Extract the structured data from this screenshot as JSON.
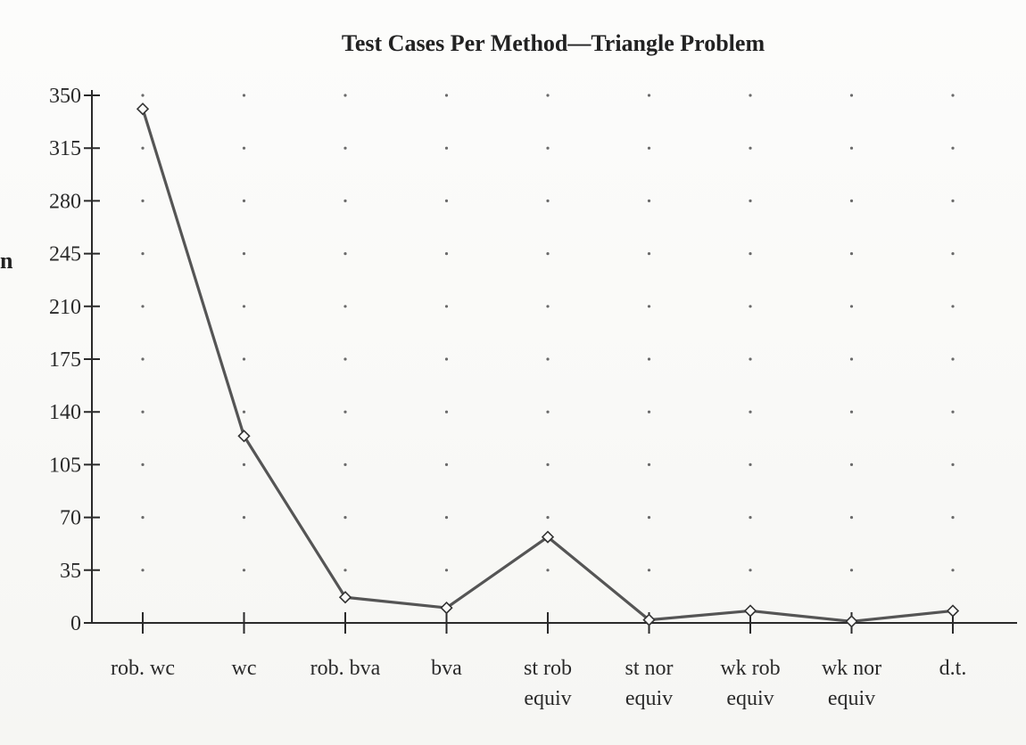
{
  "left_edge_glyph": "n",
  "chart_data": {
    "type": "line",
    "title": "Test Cases Per Method—Triangle Problem",
    "xlabel": "",
    "ylabel": "",
    "categories": [
      [
        "rob. wc"
      ],
      [
        "wc"
      ],
      [
        "rob. bva"
      ],
      [
        "bva"
      ],
      [
        "st rob",
        "equiv"
      ],
      [
        "st nor",
        "equiv"
      ],
      [
        "wk rob",
        "equiv"
      ],
      [
        "wk nor",
        "equiv"
      ],
      [
        "d.t."
      ]
    ],
    "series": [
      {
        "values": [
          341,
          124,
          17,
          10,
          57,
          2,
          8,
          1,
          8
        ],
        "marker": "diamond",
        "color": "#555555"
      }
    ],
    "yticks": [
      0,
      35,
      70,
      105,
      140,
      175,
      210,
      245,
      280,
      315,
      350
    ],
    "ylim": [
      0,
      350
    ],
    "grid": "dotted"
  }
}
